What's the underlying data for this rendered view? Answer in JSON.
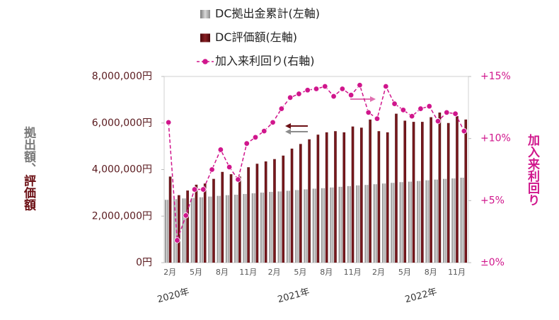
{
  "chart_data": {
    "type": "bar_line",
    "categories": [
      "2月",
      null,
      null,
      "5月",
      null,
      null,
      "8月",
      null,
      null,
      "11月",
      null,
      null,
      "2月",
      null,
      null,
      "5月",
      null,
      null,
      "8月",
      null,
      null,
      "11月",
      null,
      null,
      "2月",
      null,
      null,
      "5月",
      null,
      null,
      "8月",
      null,
      null,
      "11月",
      null
    ],
    "x_groups": [
      "2020年",
      "2021年",
      "2022年"
    ],
    "y_label": [
      "拠出額、",
      "評価額"
    ],
    "y2_label": "加入来利回り",
    "ylim": [
      0,
      8000000
    ],
    "yticks": [
      {
        "value": 0,
        "label": "0円"
      },
      {
        "value": 2000000,
        "label": "2,000,000円"
      },
      {
        "value": 4000000,
        "label": "4,000,000円"
      },
      {
        "value": 6000000,
        "label": "6,000,000円"
      },
      {
        "value": 8000000,
        "label": "8,000,000円"
      }
    ],
    "y2lim": [
      0,
      15
    ],
    "y2ticks": [
      {
        "value": 0,
        "label": "±0%"
      },
      {
        "value": 5,
        "label": "+5%"
      },
      {
        "value": 10,
        "label": "+10%"
      },
      {
        "value": 15,
        "label": "+15%"
      }
    ],
    "series": [
      {
        "name": "DC拠出金累計(左軸)",
        "color": "#8c8c8c",
        "type": "bar",
        "values": [
          2700000,
          2730000,
          2760000,
          2780000,
          2810000,
          2840000,
          2870000,
          2900000,
          2920000,
          2950000,
          2980000,
          3010000,
          3040000,
          3060000,
          3090000,
          3120000,
          3150000,
          3180000,
          3200000,
          3230000,
          3260000,
          3290000,
          3320000,
          3340000,
          3370000,
          3400000,
          3430000,
          3460000,
          3480000,
          3510000,
          3540000,
          3570000,
          3600000,
          3620000,
          3650000
        ]
      },
      {
        "name": "DC評価額(左軸)",
        "color": "#6b0f14",
        "type": "bar",
        "values": [
          3700000,
          2900000,
          3100000,
          3350000,
          3400000,
          3600000,
          3900000,
          3800000,
          3700000,
          4100000,
          4250000,
          4350000,
          4450000,
          4600000,
          4900000,
          5100000,
          5300000,
          5500000,
          5600000,
          5650000,
          5600000,
          5850000,
          5800000,
          6150000,
          5650000,
          5600000,
          6400000,
          6100000,
          6050000,
          6050000,
          6250000,
          6450000,
          6000000,
          6300000,
          6150000
        ]
      },
      {
        "name": "加入来利回り(右軸)",
        "color": "#d0168c",
        "type": "line",
        "axis": "y2",
        "values": [
          11.3,
          1.8,
          3.8,
          5.9,
          5.9,
          7.5,
          9.1,
          7.7,
          6.7,
          9.6,
          10.1,
          10.6,
          11.3,
          12.4,
          13.3,
          13.6,
          13.9,
          14.0,
          14.2,
          13.4,
          14.0,
          13.5,
          14.3,
          12.1,
          11.6,
          14.2,
          12.8,
          12.3,
          11.8,
          12.4,
          12.6,
          11.4,
          12.1,
          12.0,
          10.6
        ]
      }
    ]
  }
}
